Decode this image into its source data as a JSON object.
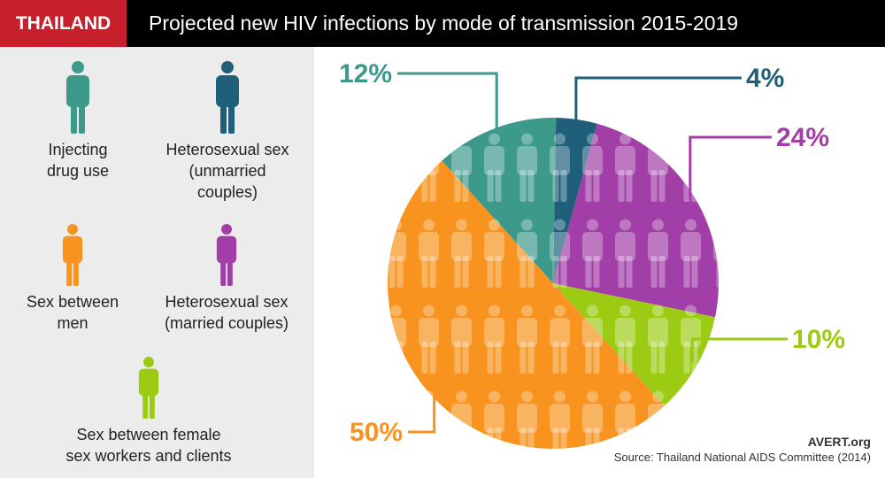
{
  "header": {
    "country": "THAILAND",
    "title": "Projected new HIV infections by mode of transmission 2015-2019"
  },
  "legend": [
    {
      "label_lines": [
        "Injecting",
        "drug use"
      ],
      "color": "#3d9a8b",
      "icon": "person-icon"
    },
    {
      "label_lines": [
        "Heterosexual sex",
        "(unmarried",
        "couples)"
      ],
      "color": "#1f5f7a",
      "icon": "person-icon"
    },
    {
      "label_lines": [
        "Sex between",
        "men"
      ],
      "color": "#f7931e",
      "icon": "person-icon"
    },
    {
      "label_lines": [
        "Heterosexual sex",
        "(married couples)"
      ],
      "color": "#a23ea8",
      "icon": "person-icon"
    },
    {
      "label_lines": [
        "Sex between female",
        "sex workers and clients"
      ],
      "color": "#9ccb14",
      "icon": "person-icon"
    }
  ],
  "chart_data": {
    "type": "pie",
    "slices": [
      {
        "label": "Heterosexual sex (unmarried couples)",
        "value": 4,
        "value_label": "4%",
        "color": "#1f5f7a"
      },
      {
        "label": "Heterosexual sex (married couples)",
        "value": 24,
        "value_label": "24%",
        "color": "#a23ea8"
      },
      {
        "label": "Sex between female sex workers and clients",
        "value": 10,
        "value_label": "10%",
        "color": "#9ccb14"
      },
      {
        "label": "Sex between men",
        "value": 50,
        "value_label": "50%",
        "color": "#f7931e"
      },
      {
        "label": "Injecting drug use",
        "value": 12,
        "value_label": "12%",
        "color": "#3d9a8b"
      }
    ]
  },
  "footer": {
    "brand": "AVERT.org",
    "source": "Source: Thailand National AIDS Committee (2014)"
  }
}
